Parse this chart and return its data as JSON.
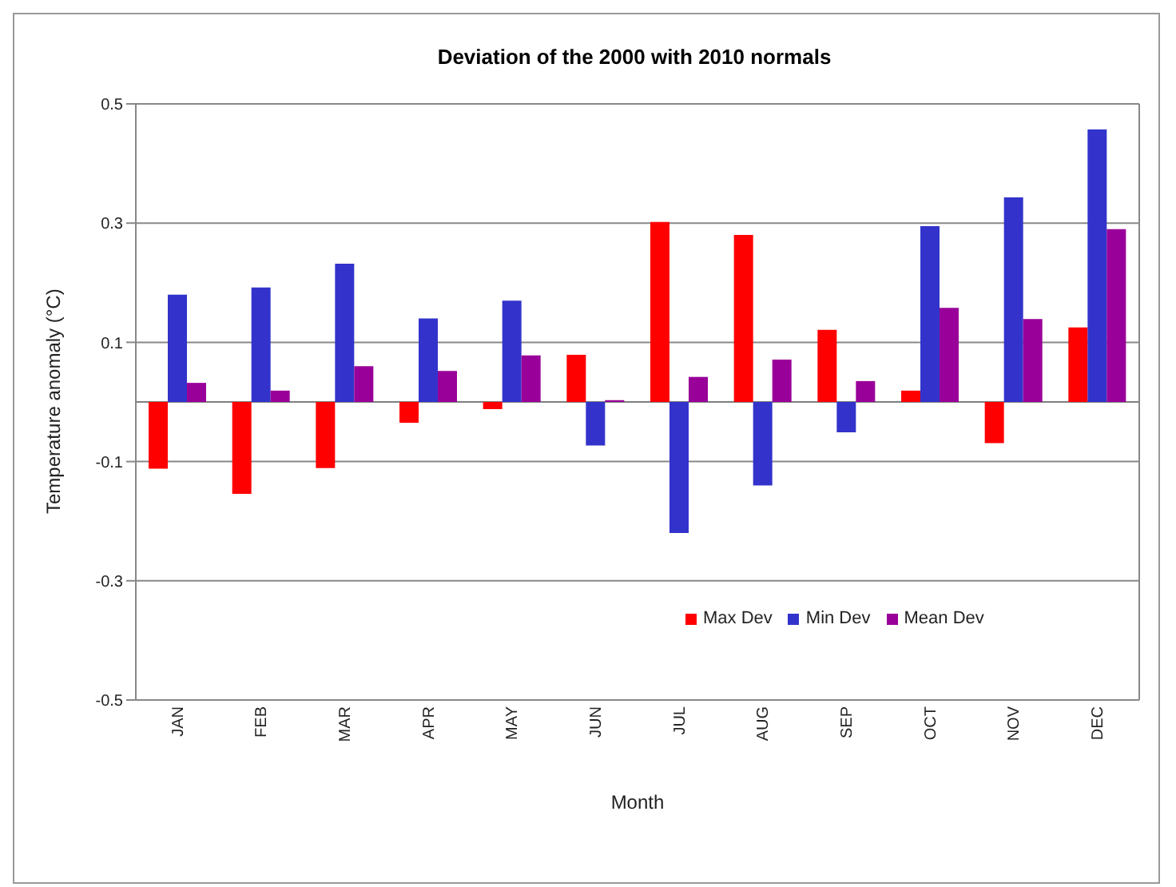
{
  "chart_data": {
    "type": "bar",
    "title": "Deviation of the 2000 with 2010 normals",
    "xlabel": "Month",
    "ylabel": "Temperature anomaly (°C)",
    "categories": [
      "JAN",
      "FEB",
      "MAR",
      "APR",
      "MAY",
      "JUN",
      "JUL",
      "AUG",
      "SEP",
      "OCT",
      "NOV",
      "DEC"
    ],
    "series": [
      {
        "name": "Max Dev",
        "color": "#ff0000",
        "values": [
          -0.112,
          -0.154,
          -0.111,
          -0.035,
          -0.012,
          0.079,
          0.302,
          0.28,
          0.121,
          0.019,
          -0.069,
          0.125
        ]
      },
      {
        "name": "Min Dev",
        "color": "#3333cc",
        "values": [
          0.18,
          0.192,
          0.232,
          0.14,
          0.17,
          -0.073,
          -0.22,
          -0.14,
          -0.051,
          0.295,
          0.343,
          0.457
        ]
      },
      {
        "name": "Mean Dev",
        "color": "#990099",
        "values": [
          0.032,
          0.019,
          0.06,
          0.052,
          0.078,
          0.003,
          0.042,
          0.071,
          0.035,
          0.158,
          0.139,
          0.29
        ]
      }
    ],
    "ylim": [
      -0.5,
      0.5
    ],
    "yticks": [
      -0.5,
      -0.3,
      -0.1,
      0.1,
      0.3,
      0.5
    ],
    "grid": "y",
    "legend": "bottom right"
  }
}
